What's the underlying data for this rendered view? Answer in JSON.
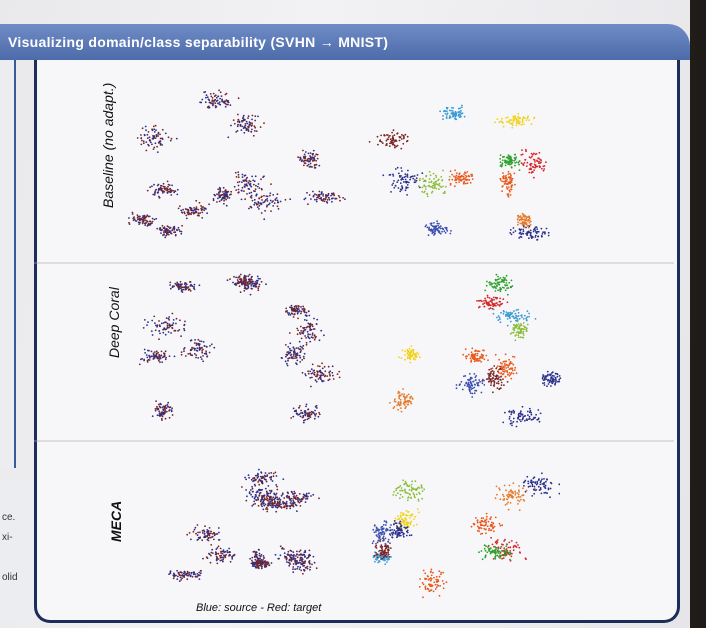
{
  "title": "Visualizing domain/class separability (SVHN → MNIST)",
  "rows": [
    {
      "label": "Baseline (no adapt.)"
    },
    {
      "label": "Deep Coral"
    },
    {
      "label": "MECA"
    }
  ],
  "caption": "Blue: source - Red: target",
  "left_fragments": [
    "ce.",
    "xi-",
    "olid"
  ],
  "colors": {
    "header": "#4d6ba9",
    "panel_border": "#1d2d59",
    "source": "#2a2f8a",
    "target": "#7a2424",
    "classes": [
      "#2a2f8a",
      "#e85a1e",
      "#8bbd3a",
      "#3a9bd6",
      "#f2d21b",
      "#d62728",
      "#2ca02c",
      "#7a2424",
      "#e57b2b",
      "#3b4fb0"
    ]
  }
}
